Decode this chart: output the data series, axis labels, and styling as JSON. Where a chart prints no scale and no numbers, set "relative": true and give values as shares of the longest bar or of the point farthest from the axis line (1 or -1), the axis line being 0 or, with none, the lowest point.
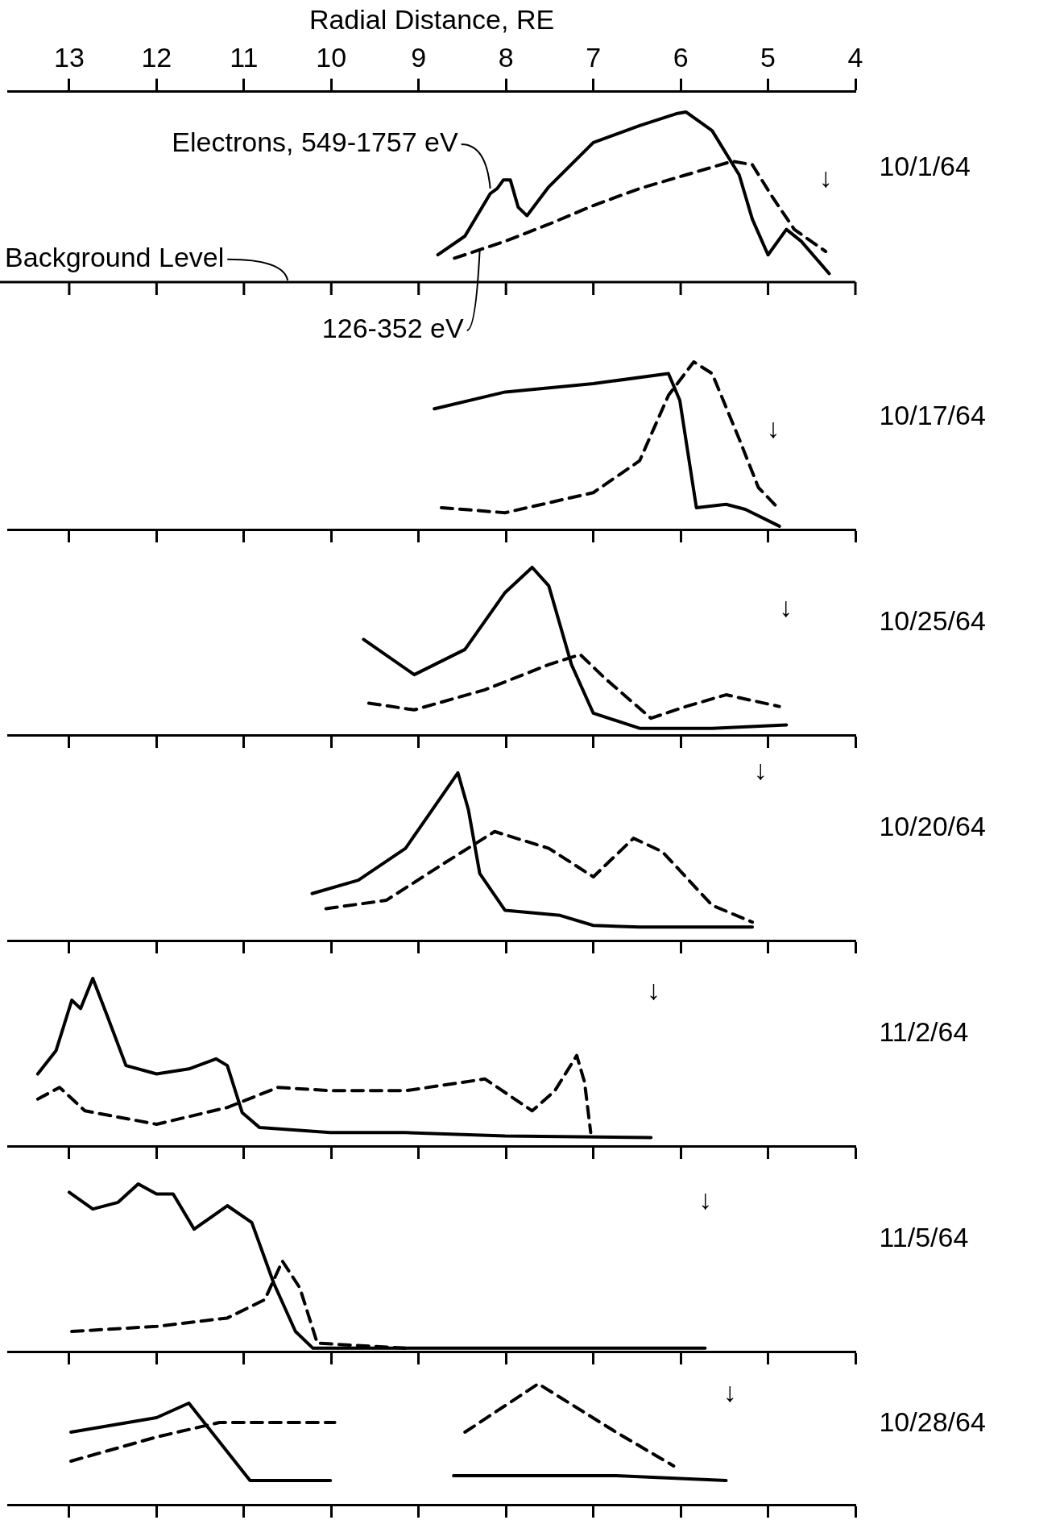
{
  "chart_data": [
    {
      "type": "line",
      "relative": true,
      "xlim": [
        13.7,
        4
      ],
      "xticks": [
        13,
        12,
        11,
        10,
        9,
        8,
        7,
        6,
        5,
        4
      ],
      "xlabel": "Radial Distance, RE",
      "tick_labels": "x",
      "annotations": [
        {
          "text": "Electrons, 549-1757 eV",
          "x": 8.18,
          "y": 0.55
        },
        {
          "text": "126-352 eV",
          "x": 8.3,
          "y": 0.19
        },
        "Background Level",
        "↓",
        "10/1/64"
      ],
      "series": [
        {
          "color": "#000000",
          "line_style": "solid",
          "x": [
            8.78,
            8.47,
            8.18,
            8.1,
            8.03,
            7.95,
            7.86,
            7.76,
            7.51,
            7.0,
            6.47,
            6.05,
            5.94,
            5.64,
            5.33,
            5.18,
            5.0,
            4.79,
            4.62,
            4.3
          ],
          "values": [
            0.16,
            0.27,
            0.52,
            0.55,
            0.6,
            0.6,
            0.44,
            0.39,
            0.56,
            0.82,
            0.92,
            0.99,
            1.0,
            0.89,
            0.63,
            0.37,
            0.16,
            0.31,
            0.24,
            0.05
          ]
        },
        {
          "color": "#000000",
          "line_style": "dashed",
          "x": [
            8.59,
            8.01,
            7.51,
            7.0,
            6.47,
            5.94,
            5.41,
            5.18,
            4.95,
            4.7,
            4.34
          ],
          "values": [
            0.14,
            0.24,
            0.34,
            0.45,
            0.55,
            0.63,
            0.71,
            0.69,
            0.5,
            0.31,
            0.18
          ]
        }
      ]
    },
    {
      "type": "line",
      "relative": true,
      "xlim": [
        13.7,
        4
      ],
      "xticks": [
        {
          "value": 13,
          "label": null
        },
        {
          "value": 12,
          "label": null
        },
        {
          "value": 11,
          "label": null
        },
        {
          "value": 10,
          "label": null
        },
        {
          "value": 9,
          "label": null
        },
        {
          "value": 8,
          "label": null
        },
        {
          "value": 7,
          "label": null
        },
        {
          "value": 6,
          "label": null
        },
        {
          "value": 5,
          "label": null
        },
        {
          "value": 4,
          "label": null
        }
      ],
      "tick_labels": false,
      "annotations": [
        "↓",
        "10/17/64"
      ],
      "series": [
        {
          "color": "#000000",
          "line_style": "solid",
          "x": [
            8.82,
            8.01,
            7.0,
            6.14,
            6.01,
            5.82,
            5.48,
            5.26,
            4.87
          ],
          "values": [
            0.72,
            0.82,
            0.87,
            0.93,
            0.77,
            0.13,
            0.15,
            0.12,
            0.02
          ]
        },
        {
          "color": "#000000",
          "line_style": "dashed",
          "x": [
            8.74,
            8.01,
            7.0,
            6.47,
            6.14,
            5.85,
            5.64,
            5.33,
            5.11,
            4.87
          ],
          "values": [
            0.13,
            0.1,
            0.22,
            0.41,
            0.8,
            1.0,
            0.93,
            0.54,
            0.25,
            0.12
          ]
        }
      ]
    },
    {
      "type": "line",
      "relative": true,
      "xlim": [
        13.7,
        4
      ],
      "xticks": [
        {
          "value": 13,
          "label": null
        },
        {
          "value": 12,
          "label": null
        },
        {
          "value": 11,
          "label": null
        },
        {
          "value": 10,
          "label": null
        },
        {
          "value": 9,
          "label": null
        },
        {
          "value": 8,
          "label": null
        },
        {
          "value": 7,
          "label": null
        },
        {
          "value": 6,
          "label": null
        },
        {
          "value": 5,
          "label": null
        },
        {
          "value": 4,
          "label": null
        }
      ],
      "tick_labels": false,
      "annotations": [
        "↓",
        "10/25/64"
      ],
      "series": [
        {
          "color": "#000000",
          "line_style": "solid",
          "x": [
            9.63,
            9.05,
            8.47,
            8.01,
            7.7,
            7.51,
            7.25,
            7.0,
            6.47,
            5.64,
            4.79
          ],
          "values": [
            0.57,
            0.36,
            0.51,
            0.85,
            1.0,
            0.89,
            0.42,
            0.13,
            0.04,
            0.04,
            0.06
          ]
        },
        {
          "color": "#000000",
          "line_style": "dashed",
          "x": [
            9.57,
            9.05,
            8.24,
            7.51,
            7.15,
            6.87,
            6.34,
            5.94,
            5.48,
            4.87
          ],
          "values": [
            0.19,
            0.15,
            0.27,
            0.42,
            0.48,
            0.34,
            0.1,
            0.17,
            0.24,
            0.17
          ]
        }
      ]
    },
    {
      "type": "line",
      "relative": true,
      "xlim": [
        13.7,
        4
      ],
      "xticks": [
        {
          "value": 13,
          "label": null
        },
        {
          "value": 12,
          "label": null
        },
        {
          "value": 11,
          "label": null
        },
        {
          "value": 10,
          "label": null
        },
        {
          "value": 9,
          "label": null
        },
        {
          "value": 8,
          "label": null
        },
        {
          "value": 7,
          "label": null
        },
        {
          "value": 6,
          "label": null
        },
        {
          "value": 5,
          "label": null
        },
        {
          "value": 4,
          "label": null
        }
      ],
      "tick_labels": false,
      "annotations": [
        "↓",
        "10/20/64"
      ],
      "series": [
        {
          "color": "#000000",
          "line_style": "solid",
          "x": [
            10.22,
            9.69,
            9.15,
            8.55,
            8.43,
            8.3,
            8.01,
            7.38,
            7.0,
            6.47,
            5.18
          ],
          "values": [
            0.28,
            0.36,
            0.55,
            1.0,
            0.78,
            0.4,
            0.18,
            0.15,
            0.09,
            0.08,
            0.08
          ]
        },
        {
          "color": "#000000",
          "line_style": "dashed",
          "x": [
            10.06,
            9.37,
            8.71,
            8.13,
            7.51,
            7.0,
            6.54,
            6.21,
            5.64,
            5.18
          ],
          "values": [
            0.19,
            0.24,
            0.46,
            0.65,
            0.55,
            0.38,
            0.61,
            0.53,
            0.21,
            0.11
          ]
        }
      ]
    },
    {
      "type": "line",
      "relative": true,
      "xlim": [
        13.7,
        4
      ],
      "xticks": [
        {
          "value": 13,
          "label": null
        },
        {
          "value": 12,
          "label": null
        },
        {
          "value": 11,
          "label": null
        },
        {
          "value": 10,
          "label": null
        },
        {
          "value": 9,
          "label": null
        },
        {
          "value": 8,
          "label": null
        },
        {
          "value": 7,
          "label": null
        },
        {
          "value": 6,
          "label": null
        },
        {
          "value": 5,
          "label": null
        },
        {
          "value": 4,
          "label": null
        }
      ],
      "tick_labels": false,
      "annotations": [
        "↓",
        "11/2/64"
      ],
      "series": [
        {
          "color": "#000000",
          "line_style": "solid",
          "x": [
            13.36,
            13.15,
            12.97,
            12.87,
            12.73,
            12.56,
            12.35,
            12.0,
            11.63,
            11.32,
            11.19,
            11.02,
            10.82,
            10.01,
            9.15,
            8.01,
            6.34
          ],
          "values": [
            0.43,
            0.57,
            0.87,
            0.82,
            1.0,
            0.77,
            0.48,
            0.43,
            0.46,
            0.52,
            0.48,
            0.2,
            0.11,
            0.08,
            0.08,
            0.06,
            0.05
          ]
        },
        {
          "color": "#000000",
          "line_style": "dashed",
          "x": [
            13.36,
            13.11,
            12.82,
            12.0,
            11.19,
            10.61,
            10.01,
            9.15,
            8.24,
            7.7,
            7.44,
            7.19,
            7.1,
            7.03
          ],
          "values": [
            0.28,
            0.35,
            0.21,
            0.13,
            0.23,
            0.35,
            0.33,
            0.33,
            0.4,
            0.21,
            0.33,
            0.54,
            0.38,
            0.08
          ]
        }
      ]
    },
    {
      "type": "line",
      "relative": true,
      "xlim": [
        13.7,
        4
      ],
      "xticks": [
        {
          "value": 13,
          "label": null
        },
        {
          "value": 12,
          "label": null
        },
        {
          "value": 11,
          "label": null
        },
        {
          "value": 10,
          "label": null
        },
        {
          "value": 9,
          "label": null
        },
        {
          "value": 8,
          "label": null
        },
        {
          "value": 7,
          "label": null
        },
        {
          "value": 6,
          "label": null
        },
        {
          "value": 5,
          "label": null
        },
        {
          "value": 4,
          "label": null
        }
      ],
      "tick_labels": false,
      "annotations": [
        "↓",
        "11/5/64"
      ],
      "series": [
        {
          "color": "#000000",
          "line_style": "solid",
          "x": [
            13.0,
            12.73,
            12.44,
            12.21,
            12.0,
            11.81,
            11.57,
            11.19,
            10.91,
            10.66,
            10.41,
            10.21,
            9.15,
            5.72
          ],
          "values": [
            0.95,
            0.85,
            0.89,
            1.0,
            0.94,
            0.94,
            0.73,
            0.87,
            0.77,
            0.41,
            0.12,
            0.02,
            0.02,
            0.02
          ]
        },
        {
          "color": "#000000",
          "line_style": "dashed",
          "x": [
            12.97,
            12.0,
            11.19,
            10.76,
            10.56,
            10.36,
            10.16,
            9.15
          ],
          "values": [
            0.12,
            0.15,
            0.2,
            0.31,
            0.54,
            0.38,
            0.05,
            0.02
          ]
        }
      ]
    },
    {
      "type": "line",
      "relative": true,
      "xlim": [
        13.7,
        4
      ],
      "xticks": [
        {
          "value": 13,
          "label": null
        },
        {
          "value": 12,
          "label": null
        },
        {
          "value": 11,
          "label": null
        },
        {
          "value": 10,
          "label": null
        },
        {
          "value": 9,
          "label": null
        },
        {
          "value": 8,
          "label": null
        },
        {
          "value": 7,
          "label": null
        },
        {
          "value": 6,
          "label": null
        },
        {
          "value": 5,
          "label": null
        },
        {
          "value": 4,
          "label": null
        }
      ],
      "tick_labels": false,
      "annotations": [
        "↓",
        "10/28/64"
      ],
      "series": [
        {
          "color": "#000000",
          "line_style": "solid",
          "x": [
            12.98,
            12.0,
            11.63,
            11.28,
            10.93,
            10.01,
            9.3,
            8.6,
            6.74,
            5.48
          ],
          "values": [
            0.6,
            0.72,
            0.84,
            0.52,
            0.2,
            0.2,
            null,
            0.24,
            0.24,
            0.2
          ]
        },
        {
          "color": "#000000",
          "line_style": "dashed",
          "x": [
            12.98,
            12.0,
            11.28,
            10.66,
            9.96,
            9.3,
            8.47,
            7.63,
            6.74,
            6.08
          ],
          "values": [
            0.36,
            0.56,
            0.68,
            0.68,
            0.68,
            null,
            0.6,
            1.0,
            0.6,
            0.32
          ]
        }
      ]
    }
  ]
}
